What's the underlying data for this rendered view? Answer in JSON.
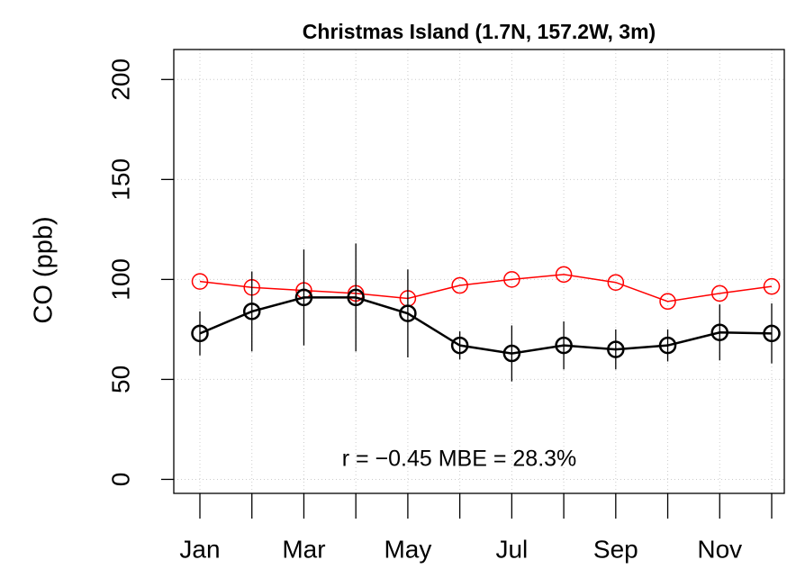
{
  "chart_data": {
    "type": "line",
    "title": "Christmas Island (1.7N, 157.2W, 3m)",
    "y_label": "CO (ppb)",
    "annotation": "r = −0.45 MBE = 28.3%",
    "categories": [
      "Jan",
      null,
      "Mar",
      null,
      "May",
      null,
      "Jul",
      null,
      "Sep",
      null,
      "Nov",
      null
    ],
    "series": [
      {
        "color": "#ff0000",
        "values": [
          99,
          96,
          94.5,
          93,
          90.5,
          97,
          100,
          102.5,
          98.5,
          89,
          93,
          96.5
        ]
      },
      {
        "color": "#000000",
        "values": [
          73,
          84,
          91,
          91,
          83,
          67,
          63,
          67,
          65,
          67,
          73.5,
          73
        ],
        "errors": [
          11,
          20,
          24,
          27,
          22,
          7,
          14,
          12,
          10,
          8,
          14,
          15
        ]
      }
    ],
    "ylim": [
      -7,
      215
    ],
    "yticks": [
      0,
      50,
      100,
      150,
      200
    ],
    "grid": true
  }
}
